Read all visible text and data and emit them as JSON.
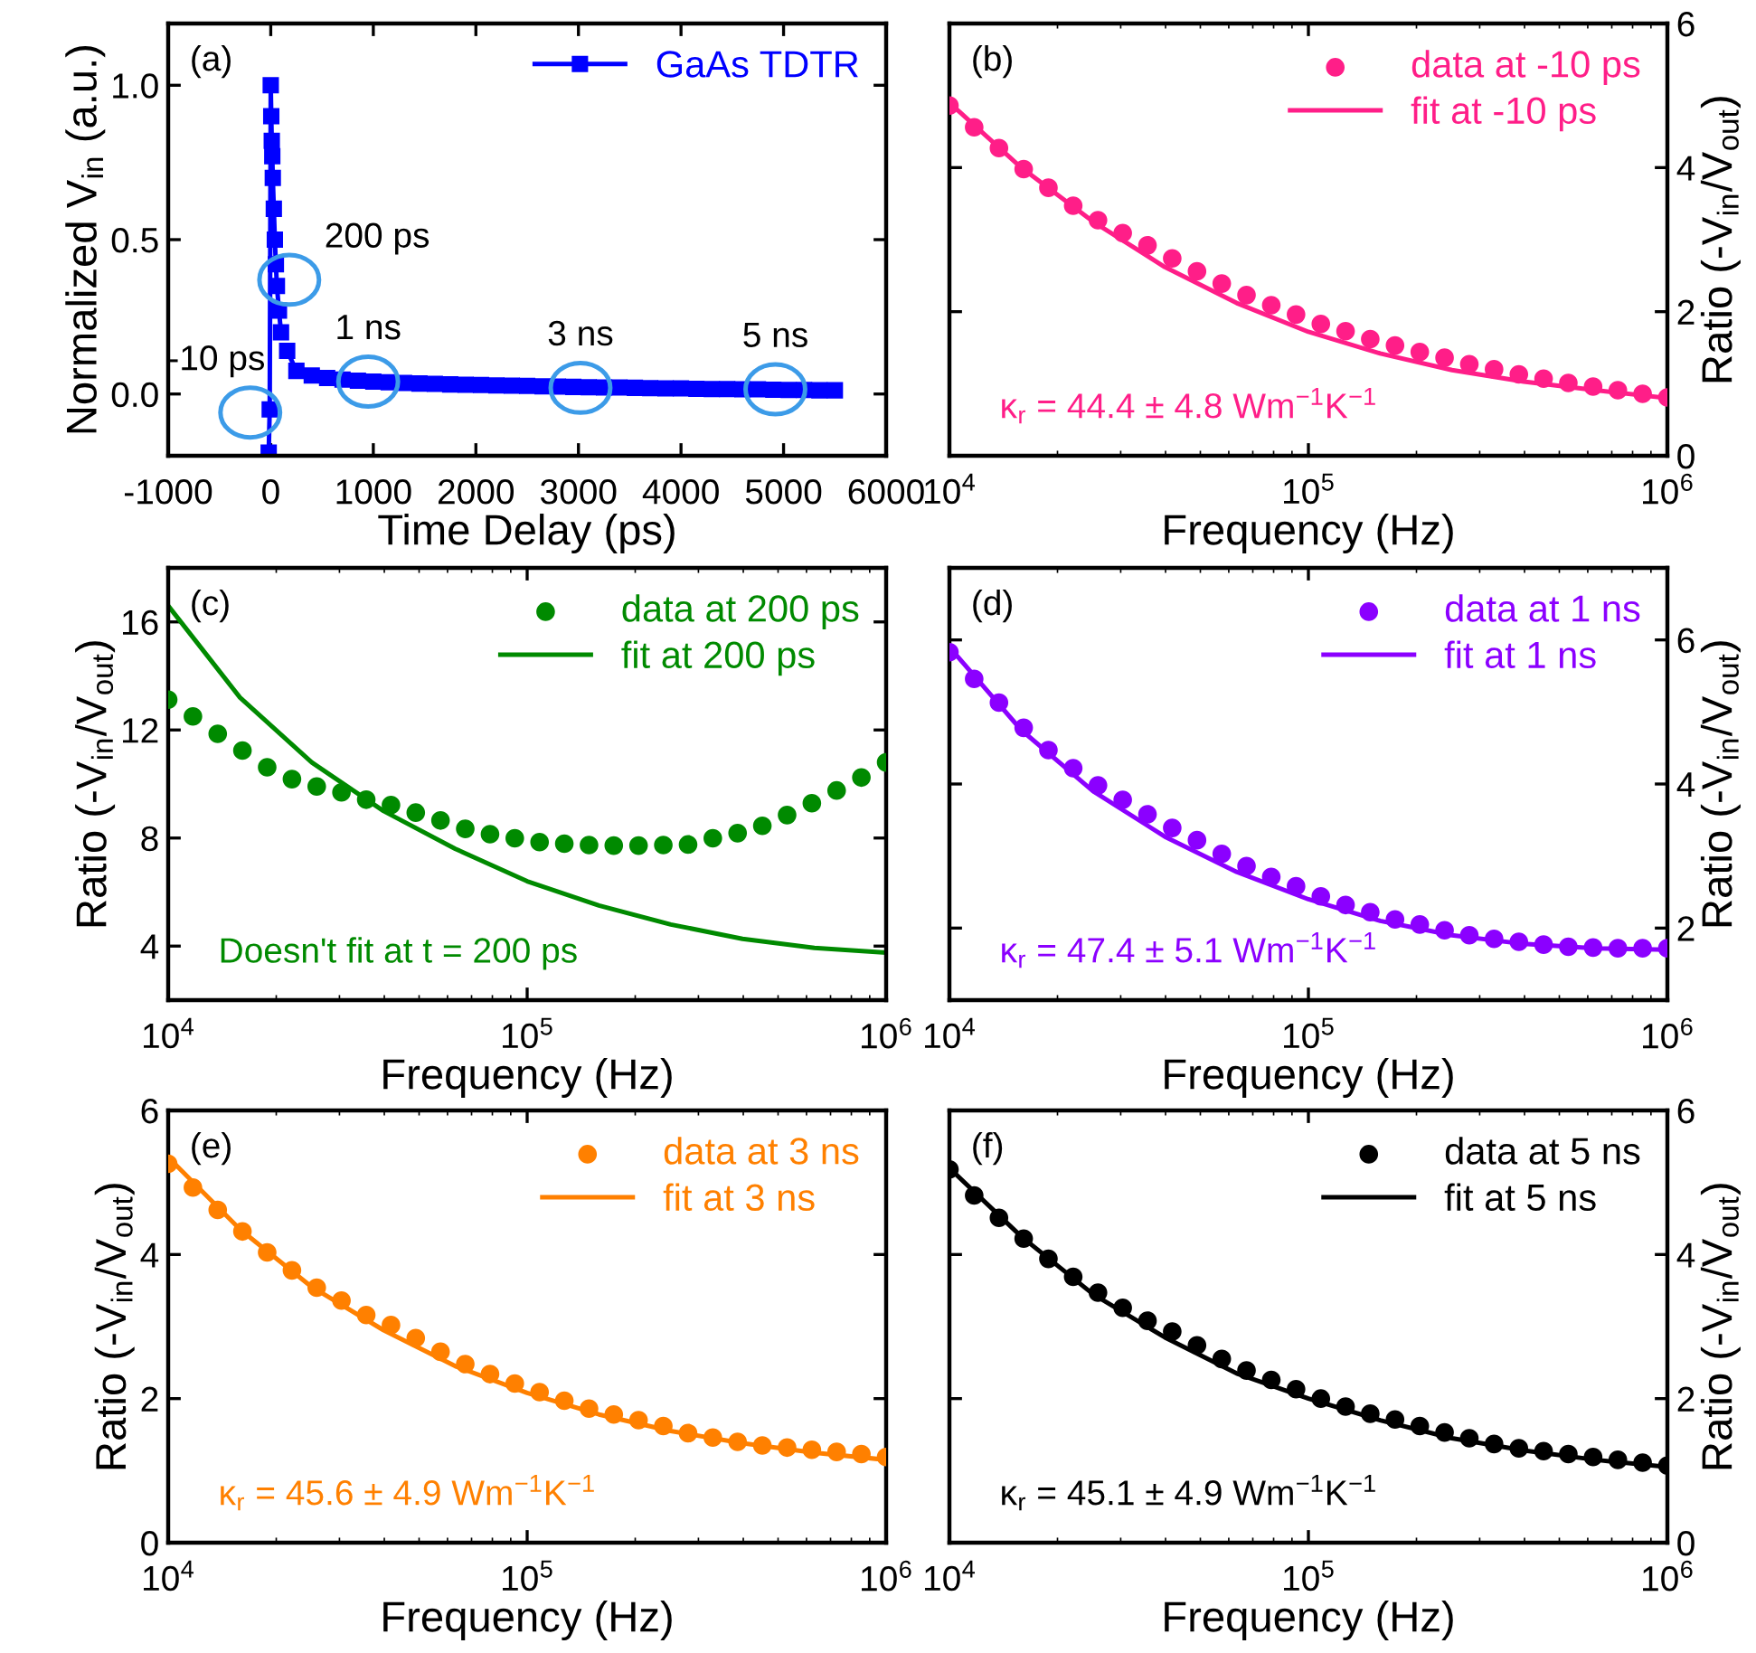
{
  "chart_data": [
    {
      "type": "line",
      "xlabel": "Time Delay (ps)",
      "ylabel": "Normalized V$_{in}$ (a.u.)",
      "xlim": [
        -1000,
        6000
      ],
      "xticks": [
        -1000,
        0,
        1000,
        2000,
        3000,
        4000,
        5000,
        6000
      ],
      "ylim": [
        -0.2,
        1.2
      ],
      "yticks": [
        {
          "value": 0,
          "label": "0.0"
        },
        0.5,
        {
          "value": 1,
          "label": "1.0"
        }
      ],
      "legend": "top right",
      "series": [
        {
          "name": "GaAs TDTR",
          "color": "#0000ff",
          "marker": "square",
          "x": [
            -20,
            -10,
            0,
            5,
            10,
            15,
            20,
            30,
            40,
            50,
            60,
            80,
            100,
            130,
            160,
            250,
            400,
            550,
            700,
            850,
            1000,
            1150,
            1300,
            1450,
            1600,
            1750,
            1900,
            2050,
            2200,
            2350,
            2500,
            2650,
            2800,
            2950,
            3100,
            3250,
            3400,
            3550,
            3700,
            3850,
            4000,
            4150,
            4300,
            4450,
            4600,
            4750,
            4900,
            5050,
            5200,
            5350,
            5500
          ],
          "values": [
            -0.19,
            -0.05,
            1.0,
            0.9,
            0.82,
            0.77,
            0.7,
            0.6,
            0.5,
            0.42,
            0.35,
            0.27,
            0.2,
            null,
            0.14,
            0.075,
            0.06,
            0.052,
            0.047,
            0.043,
            0.04,
            0.038,
            0.036,
            0.034,
            0.033,
            0.031,
            0.03,
            0.029,
            0.028,
            0.027,
            0.026,
            0.025,
            0.024,
            0.023,
            0.022,
            0.021,
            0.021,
            0.02,
            0.019,
            0.018,
            0.018,
            0.017,
            0.016,
            0.016,
            0.015,
            0.015,
            0.014,
            0.013,
            0.013,
            0.012,
            0.012
          ]
        }
      ],
      "annotations": [
        "(a)",
        {
          "text": "-10 ps",
          "x": -200,
          "y": -0.06
        },
        {
          "text": "200 ps",
          "x": 180,
          "y": 0.37
        },
        {
          "text": "1 ns",
          "x": 950,
          "y": 0.04
        },
        {
          "text": "3 ns",
          "x": 3020,
          "y": 0.02
        },
        {
          "text": "5 ns",
          "x": 4920,
          "y": 0.015
        }
      ]
    },
    {
      "type": "scatter",
      "log": "x",
      "xlabel": "Frequency (Hz)",
      "y2label": "Ratio (-V$_{in}$/V$_{out}$)",
      "xlim": [
        10000,
        1000000
      ],
      "xticks": [
        {
          "value": 10000,
          "label": "10$^{4}$"
        },
        {
          "value": 100000,
          "label": "10$^{5}$"
        },
        {
          "value": 1000000,
          "label": "10$^{6}$"
        }
      ],
      "y2lim": [
        0,
        6
      ],
      "y2ticks": [
        0,
        2,
        4,
        6
      ],
      "legend": "top right",
      "x": [
        10000,
        11720,
        13740,
        16100,
        18870,
        22120,
        25930,
        30390,
        35620,
        41750,
        48940,
        57360,
        67230,
        78800,
        92370,
        108300,
        126900,
        148700,
        174300,
        204300,
        239500,
        280700,
        329000,
        385700,
        452000,
        529800,
        621000,
        727900,
        853200,
        1000000
      ],
      "series": [
        {
          "name": "data at -10 ps",
          "color": "#ff1e88",
          "axis": "y2",
          "marker": "circle",
          "values": [
            4.86,
            4.56,
            4.27,
            3.98,
            3.72,
            3.47,
            3.27,
            3.09,
            2.92,
            2.74,
            2.56,
            2.39,
            2.23,
            2.09,
            1.96,
            1.83,
            1.73,
            1.62,
            1.53,
            1.44,
            1.36,
            1.27,
            1.2,
            1.13,
            1.07,
            1.01,
            0.96,
            0.91,
            0.86,
            0.81
          ]
        },
        {
          "name": "fit at -10 ps",
          "type": "line",
          "color": "#ff1e88",
          "axis": "y2",
          "x": [
            10000,
            15850,
            25120,
            39810,
            63100,
            100000,
            158500,
            251200,
            398100,
            631000,
            1000000
          ],
          "values": [
            4.9,
            4.0,
            3.25,
            2.62,
            2.12,
            1.72,
            1.42,
            1.19,
            1.03,
            0.91,
            0.8
          ]
        }
      ],
      "annotations": [
        "(b)",
        "κ$_{r}$ = 44.4 ± 4.8 Wm$^{−1}$K$^{−1}$"
      ]
    },
    {
      "type": "scatter",
      "log": "x",
      "xlabel": "Frequency (Hz)",
      "ylabel": "Ratio (-V$_{in}$/V$_{out}$)",
      "xlim": [
        10000,
        1000000
      ],
      "xticks": [
        {
          "value": 10000,
          "label": "10$^{4}$"
        },
        {
          "value": 100000,
          "label": "10$^{5}$"
        },
        {
          "value": 1000000,
          "label": "10$^{6}$"
        }
      ],
      "ylim": [
        2,
        18
      ],
      "yticks": [
        4,
        8,
        12,
        16
      ],
      "legend": "top right",
      "x": [
        10000,
        11720,
        13740,
        16100,
        18870,
        22120,
        25930,
        30390,
        35620,
        41750,
        48940,
        57360,
        67230,
        78800,
        92370,
        108300,
        126900,
        148700,
        174300,
        204300,
        239500,
        280700,
        329000,
        385700,
        452000,
        529800,
        621000,
        727900,
        853200,
        1000000
      ],
      "series": [
        {
          "name": "data at 200 ps",
          "color": "#008a00",
          "marker": "circle",
          "values": [
            13.12,
            12.5,
            11.86,
            11.24,
            10.62,
            10.18,
            9.91,
            9.69,
            9.42,
            9.22,
            8.94,
            8.65,
            8.34,
            8.14,
            7.99,
            7.85,
            7.79,
            7.74,
            7.72,
            7.72,
            7.74,
            7.76,
            7.99,
            8.18,
            8.45,
            8.85,
            9.29,
            9.76,
            10.24,
            10.8
          ]
        },
        {
          "name": "fit at 200 ps",
          "type": "line",
          "color": "#008a00",
          "x": [
            10000,
            15850,
            25120,
            39810,
            63100,
            100000,
            158500,
            251200,
            398100,
            631000,
            1000000
          ],
          "values": [
            16.6,
            13.2,
            10.8,
            9.0,
            7.6,
            6.4,
            5.5,
            4.8,
            4.27,
            3.93,
            3.76
          ]
        }
      ],
      "annotations": [
        "(c)",
        "Doesn't fit at t = 200 ps"
      ]
    },
    {
      "type": "scatter",
      "log": "x",
      "xlabel": "Frequency (Hz)",
      "y2label": "Ratio (-V$_{in}$/V$_{out}$)",
      "xlim": [
        10000,
        1000000
      ],
      "xticks": [
        {
          "value": 10000,
          "label": "10$^{4}$"
        },
        {
          "value": 100000,
          "label": "10$^{5}$"
        },
        {
          "value": 1000000,
          "label": "10$^{6}$"
        }
      ],
      "y2lim": [
        1,
        7
      ],
      "y2ticks": [
        2,
        4,
        6
      ],
      "legend": "top right",
      "x": [
        10000,
        11720,
        13740,
        16100,
        18870,
        22120,
        25930,
        30390,
        35620,
        41750,
        48940,
        57360,
        67230,
        78800,
        92370,
        108300,
        126900,
        148700,
        174300,
        204300,
        239500,
        280700,
        329000,
        385700,
        452000,
        529800,
        621000,
        727900,
        853200,
        1000000
      ],
      "series": [
        {
          "name": "data at 1 ns",
          "color": "#8b00ff",
          "axis": "y2",
          "marker": "circle",
          "values": [
            5.83,
            5.46,
            5.13,
            4.78,
            4.47,
            4.22,
            3.98,
            3.78,
            3.58,
            3.39,
            3.22,
            3.03,
            2.86,
            2.71,
            2.58,
            2.44,
            2.32,
            2.22,
            2.12,
            2.05,
            1.97,
            1.9,
            1.85,
            1.81,
            1.77,
            1.74,
            1.73,
            1.72,
            1.72,
            1.72
          ]
        },
        {
          "name": "fit at 1 ns",
          "type": "line",
          "color": "#8b00ff",
          "axis": "y2",
          "x": [
            10000,
            15850,
            25120,
            39810,
            63100,
            100000,
            158500,
            251200,
            398100,
            631000,
            1000000
          ],
          "values": [
            5.9,
            4.75,
            3.9,
            3.27,
            2.78,
            2.4,
            2.1,
            1.9,
            1.78,
            1.72,
            1.7
          ]
        }
      ],
      "annotations": [
        "(d)",
        "κ$_{r}$ = 47.4 ± 5.1 Wm$^{−1}$K$^{−1}$"
      ]
    },
    {
      "type": "scatter",
      "log": "x",
      "xlabel": "Frequency (Hz)",
      "ylabel": "Ratio (-V$_{in}$/V$_{out}$)",
      "xlim": [
        10000,
        1000000
      ],
      "xticks": [
        {
          "value": 10000,
          "label": "10$^{4}$"
        },
        {
          "value": 100000,
          "label": "10$^{5}$"
        },
        {
          "value": 1000000,
          "label": "10$^{6}$"
        }
      ],
      "ylim": [
        0,
        6
      ],
      "yticks": [
        0,
        2,
        4,
        6
      ],
      "legend": "top right",
      "x": [
        10000,
        11720,
        13740,
        16100,
        18870,
        22120,
        25930,
        30390,
        35620,
        41750,
        48940,
        57360,
        67230,
        78800,
        92370,
        108300,
        126900,
        148700,
        174300,
        204300,
        239500,
        280700,
        329000,
        385700,
        452000,
        529800,
        621000,
        727900,
        853200,
        1000000
      ],
      "series": [
        {
          "name": "data at 3 ns",
          "color": "#ff8000",
          "marker": "circle",
          "values": [
            5.26,
            4.93,
            4.62,
            4.32,
            4.03,
            3.78,
            3.54,
            3.36,
            3.16,
            3.02,
            2.84,
            2.65,
            2.48,
            2.34,
            2.21,
            2.09,
            1.97,
            1.86,
            1.78,
            1.7,
            1.62,
            1.52,
            1.46,
            1.4,
            1.35,
            1.32,
            1.29,
            1.26,
            1.23,
            1.19
          ]
        },
        {
          "name": "fit at 3 ns",
          "type": "line",
          "color": "#ff8000",
          "x": [
            10000,
            15850,
            25120,
            39810,
            63100,
            100000,
            158500,
            251200,
            398100,
            631000,
            1000000
          ],
          "values": [
            5.35,
            4.35,
            3.55,
            2.95,
            2.45,
            2.08,
            1.78,
            1.55,
            1.38,
            1.25,
            1.15
          ]
        }
      ],
      "annotations": [
        "(e)",
        "κ$_{r}$ = 45.6 ± 4.9 Wm$^{−1}$K$^{−1}$"
      ]
    },
    {
      "type": "scatter",
      "log": "x",
      "xlabel": "Frequency (Hz)",
      "y2label": "Ratio (-V$_{in}$/V$_{out}$)",
      "xlim": [
        10000,
        1000000
      ],
      "xticks": [
        {
          "value": 10000,
          "label": "10$^{4}$"
        },
        {
          "value": 100000,
          "label": "10$^{5}$"
        },
        {
          "value": 1000000,
          "label": "10$^{6}$"
        }
      ],
      "y2lim": [
        0,
        6
      ],
      "y2ticks": [
        0,
        2,
        4,
        6
      ],
      "legend": "top right",
      "x": [
        10000,
        11720,
        13740,
        16100,
        18870,
        22120,
        25930,
        30390,
        35620,
        41750,
        48940,
        57360,
        67230,
        78800,
        92370,
        108300,
        126900,
        148700,
        174300,
        204300,
        239500,
        280700,
        329000,
        385700,
        452000,
        529800,
        621000,
        727900,
        853200,
        1000000
      ],
      "series": [
        {
          "name": "data at 5 ns",
          "color": "#000000",
          "axis": "y2",
          "marker": "circle",
          "values": [
            5.18,
            4.82,
            4.51,
            4.22,
            3.94,
            3.69,
            3.47,
            3.26,
            3.08,
            2.93,
            2.74,
            2.55,
            2.39,
            2.26,
            2.13,
            2.0,
            1.89,
            1.79,
            1.71,
            1.62,
            1.53,
            1.45,
            1.37,
            1.31,
            1.27,
            1.23,
            1.19,
            1.15,
            1.11,
            1.07
          ]
        },
        {
          "name": "fit at 5 ns",
          "type": "line",
          "color": "#000000",
          "axis": "y2",
          "x": [
            10000,
            15850,
            25120,
            39810,
            63100,
            100000,
            158500,
            251200,
            398100,
            631000,
            1000000
          ],
          "values": [
            5.2,
            4.25,
            3.45,
            2.85,
            2.35,
            2.0,
            1.7,
            1.45,
            1.28,
            1.15,
            1.05
          ]
        }
      ],
      "annotations": [
        "(f)",
        "κ$_{r}$ = 45.1 ± 4.9 Wm$^{−1}$K$^{−1}$"
      ]
    }
  ]
}
